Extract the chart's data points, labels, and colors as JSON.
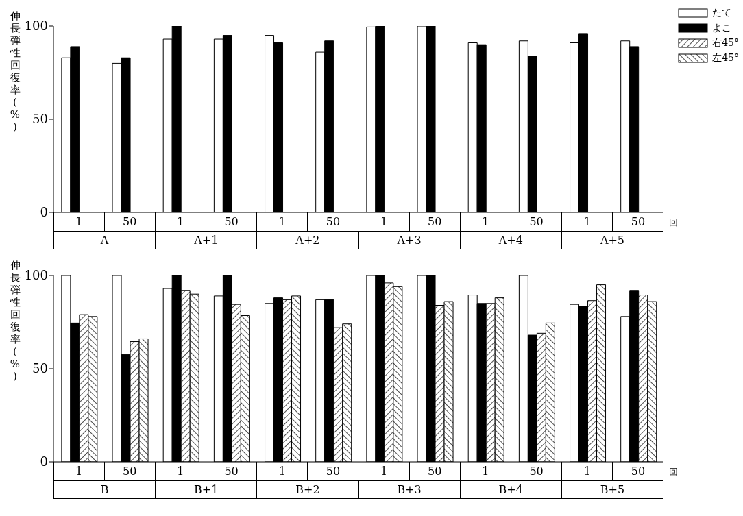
{
  "chart_data": [
    {
      "type": "bar",
      "ylabel": "伸長弾性回復率(%)",
      "xlabel": "回",
      "categories": [
        "1",
        "50",
        "1",
        "50",
        "1",
        "50",
        "1",
        "50",
        "1",
        "50",
        "1",
        "50"
      ],
      "annotations": [
        "A",
        "A+1",
        "A+2",
        "A+3",
        "A+4",
        "A+5"
      ],
      "ylim": [
        0,
        100
      ],
      "yticks": [
        0,
        50,
        100
      ],
      "grid": false,
      "legend": "top right",
      "series": [
        {
          "name": "たて",
          "color": "#ffffff",
          "values": [
            83,
            80,
            93,
            93,
            95,
            86,
            99.5,
            100,
            91,
            92,
            91,
            92
          ]
        },
        {
          "name": "よこ",
          "color": "#000000",
          "values": [
            89,
            83,
            100,
            95,
            91,
            92,
            100,
            100,
            90,
            84,
            96,
            89
          ]
        },
        {
          "name": "右45°",
          "color": "#000000",
          "values": [
            null,
            null,
            null,
            null,
            null,
            null,
            null,
            null,
            null,
            null,
            null,
            null
          ]
        },
        {
          "name": "左45°",
          "color": "#000000",
          "values": [
            null,
            null,
            null,
            null,
            null,
            null,
            null,
            null,
            null,
            null,
            null,
            null
          ]
        }
      ]
    },
    {
      "type": "bar",
      "ylabel": "伸長弾性回復率(%)",
      "xlabel": "回",
      "categories": [
        "1",
        "50",
        "1",
        "50",
        "1",
        "50",
        "1",
        "50",
        "1",
        "50",
        "1",
        "50"
      ],
      "annotations": [
        "B",
        "B+1",
        "B+2",
        "B+3",
        "B+4",
        "B+5"
      ],
      "ylim": [
        0,
        100
      ],
      "yticks": [
        0,
        50,
        100
      ],
      "grid": false,
      "series": [
        {
          "color": "#ffffff",
          "values": [
            100,
            100,
            93,
            89,
            85,
            87,
            100,
            100,
            89.5,
            100,
            84.5,
            78
          ]
        },
        {
          "color": "#000000",
          "values": [
            74.5,
            57.5,
            100,
            100,
            88,
            87,
            100,
            100,
            85,
            68,
            83.5,
            92
          ]
        },
        {
          "color": "#000000",
          "values": [
            79,
            64.5,
            92,
            84.5,
            87,
            72,
            96,
            84,
            85,
            69,
            86.5,
            89.5
          ]
        },
        {
          "color": "#000000",
          "values": [
            78,
            66,
            90,
            78.5,
            89,
            74,
            94,
            86,
            88,
            74.5,
            95,
            86
          ]
        }
      ]
    }
  ]
}
